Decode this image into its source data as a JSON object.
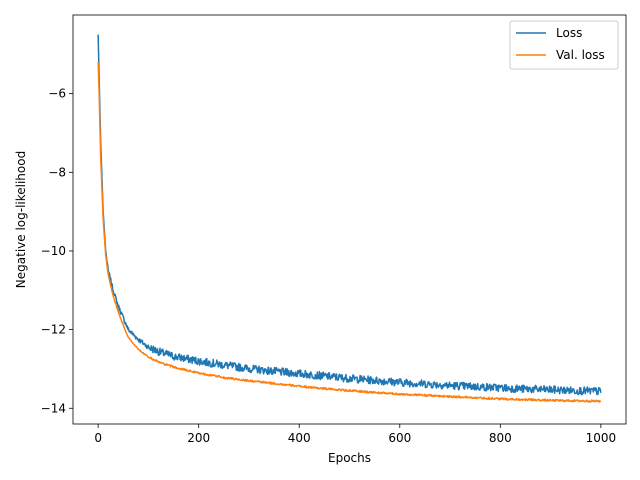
{
  "chart_data": {
    "type": "line",
    "title": "",
    "xlabel": "Epochs",
    "ylabel": "Negative log-likelihood",
    "xlim": [
      -50,
      1050
    ],
    "ylim": [
      -14.4,
      -4.0
    ],
    "xticks": [
      0,
      200,
      400,
      600,
      800,
      1000
    ],
    "yticks": [
      -14,
      -12,
      -10,
      -8,
      -6
    ],
    "xtick_labels": [
      "0",
      "200",
      "400",
      "600",
      "800",
      "1000"
    ],
    "ytick_labels": [
      "−14",
      "−12",
      "−10",
      "−8",
      "−6"
    ],
    "grid": false,
    "legend_position": "top-right",
    "series": [
      {
        "name": "Loss",
        "color": "#1f77b4",
        "x": [
          0,
          2,
          5,
          10,
          15,
          20,
          30,
          40,
          50,
          60,
          80,
          100,
          125,
          150,
          175,
          200,
          250,
          300,
          350,
          400,
          450,
          500,
          550,
          600,
          650,
          700,
          750,
          800,
          850,
          900,
          950,
          1000
        ],
        "y": [
          -4.5,
          -5.6,
          -7.2,
          -9.0,
          -10.0,
          -10.5,
          -11.0,
          -11.4,
          -11.7,
          -12.0,
          -12.25,
          -12.45,
          -12.58,
          -12.68,
          -12.74,
          -12.8,
          -12.9,
          -12.99,
          -13.06,
          -13.12,
          -13.18,
          -13.24,
          -13.29,
          -13.34,
          -13.38,
          -13.42,
          -13.45,
          -13.48,
          -13.51,
          -13.53,
          -13.55,
          -13.57
        ],
        "noise": 0.1
      },
      {
        "name": "Val. loss",
        "color": "#ff7f0e",
        "x": [
          0,
          2,
          5,
          10,
          15,
          20,
          30,
          40,
          50,
          60,
          80,
          100,
          125,
          150,
          175,
          200,
          250,
          300,
          350,
          400,
          450,
          500,
          550,
          600,
          650,
          700,
          750,
          800,
          850,
          900,
          950,
          1000
        ],
        "y": [
          -5.2,
          -6.0,
          -7.6,
          -9.2,
          -10.1,
          -10.6,
          -11.15,
          -11.55,
          -11.9,
          -12.2,
          -12.5,
          -12.7,
          -12.85,
          -12.95,
          -13.03,
          -13.1,
          -13.22,
          -13.3,
          -13.37,
          -13.44,
          -13.5,
          -13.55,
          -13.6,
          -13.64,
          -13.67,
          -13.7,
          -13.73,
          -13.76,
          -13.78,
          -13.8,
          -13.81,
          -13.82
        ],
        "noise": 0.025
      }
    ]
  }
}
